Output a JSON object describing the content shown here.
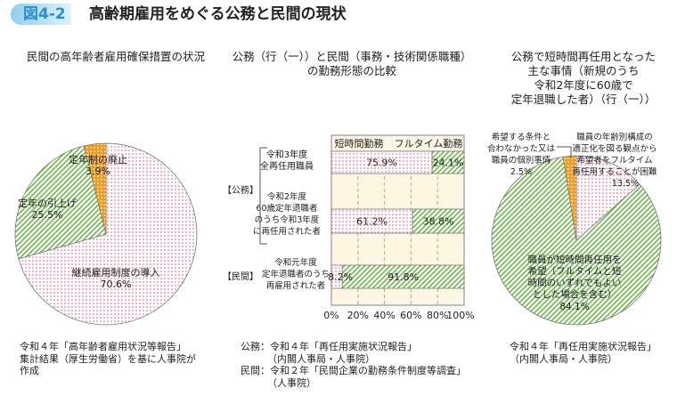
{
  "header": {
    "figure_label": "図4-2",
    "title": "高齢期雇用をめぐる公務と民間の現状"
  },
  "colors": {
    "pink": "#e8528f",
    "green": "#6db54c",
    "orange": "#f39c1f",
    "chart_bg": "#fdf6e3"
  },
  "chart_data": [
    {
      "type": "pie",
      "title": "民間の高年齢者雇用確保措置の状況",
      "slices": [
        {
          "label": "継続雇用制度の導入",
          "value": 70.6,
          "value_label": "70.6%"
        },
        {
          "label": "定年の引上げ",
          "value": 25.5,
          "value_label": "25.5%"
        },
        {
          "label": "定年制の廃止",
          "value": 3.9,
          "value_label": "3.9%"
        }
      ],
      "source": [
        "令和４年「高年齢者雇用状況等報告」",
        "集計結果（厚生労働省）を基に人事院が",
        "作成"
      ]
    },
    {
      "type": "bar",
      "stacked": true,
      "orientation": "horizontal",
      "title": [
        "公務（行（一））と民間（事務・技術関係職種）",
        "の勤務形態の比較"
      ],
      "legend": [
        "短時間勤務",
        "フルタイム勤務"
      ],
      "groups": [
        {
          "label": "【公務】"
        },
        {
          "label": "【民間】"
        }
      ],
      "categories": [
        [
          "令和3年度",
          "全再任用職員"
        ],
        [
          "令和2年度",
          "60歳定年退職者",
          "のうち令和3年度",
          "に再任用された者"
        ],
        [
          "令和元年度",
          "定年退職者のうち",
          "再雇用された者"
        ]
      ],
      "series": [
        {
          "name": "短時間勤務",
          "values": [
            75.9,
            61.2,
            8.2
          ],
          "labels": [
            "75.9%",
            "61.2%",
            "8.2%"
          ]
        },
        {
          "name": "フルタイム勤務",
          "values": [
            24.1,
            38.8,
            91.8
          ],
          "labels": [
            "24.1%",
            "38.8%",
            "91.8%"
          ]
        }
      ],
      "xlim": [
        0,
        100
      ],
      "xticks": [
        "0%",
        "20%",
        "40%",
        "60%",
        "80%",
        "100%"
      ],
      "grid": true,
      "source": [
        "公務：令和４年「再任用実施状況報告」",
        "（内閣人事局・人事院）",
        "民間：令和２年「民間企業の勤務条件制度等調査」",
        "（人事院）"
      ]
    },
    {
      "type": "pie",
      "title": [
        "公務で短時間再任用となった",
        "主な事情（新規のうち",
        "令和2年度に60歳で",
        "定年退職した者）（行（一））"
      ],
      "slices": [
        {
          "label": [
            "職員の年齢別構成の",
            "適正化を図る観点から",
            "希望者をフルタイム",
            "再任用することが困難"
          ],
          "value": 13.5,
          "value_label": "13.5%"
        },
        {
          "label": [
            "職員が短時間再任用を",
            "希望（フルタイムと短",
            "時間のいずれでもよい",
            "とした場合を含む）"
          ],
          "value": 84.1,
          "value_label": "84.1%"
        },
        {
          "label": [
            "希望する条件と",
            "合わなかった又は",
            "職員の個別事情"
          ],
          "value": 2.5,
          "value_label": "2.5%"
        }
      ],
      "source": [
        "令和４年「再任用実施状況報告」",
        "（内閣人事局・人事院）"
      ]
    }
  ]
}
